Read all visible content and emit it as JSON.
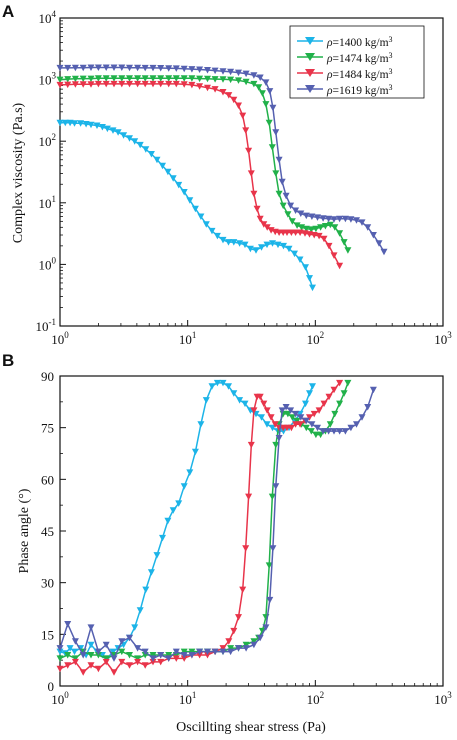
{
  "figure": {
    "panel_a_letter": "A",
    "panel_b_letter": "B"
  },
  "legend": {
    "entries": [
      {
        "label_prefix": "ρ",
        "label_main": "=1400 kg/m",
        "label_sup": "3",
        "color": "#1cb4e8"
      },
      {
        "label_prefix": "ρ",
        "label_main": "=1474 kg/m",
        "label_sup": "3",
        "color": "#21b14a"
      },
      {
        "label_prefix": "ρ",
        "label_main": "=1484 kg/m",
        "label_sup": "3",
        "color": "#e8344a"
      },
      {
        "label_prefix": "ρ",
        "label_main": "=1619 kg/m",
        "label_sup": "3",
        "color": "#5560b0"
      }
    ]
  },
  "chart_data": [
    {
      "type": "scatter",
      "panel": "A",
      "xscale": "log",
      "yscale": "log",
      "xlim": [
        1,
        1000
      ],
      "ylim": [
        0.1,
        10000
      ],
      "xlabel": "",
      "ylabel": "Complex viscosity (Pa.s)",
      "x_tick_labels": [
        {
          "base": "10",
          "exp": "0"
        },
        {
          "base": "10",
          "exp": "1"
        },
        {
          "base": "10",
          "exp": "2"
        },
        {
          "base": "10",
          "exp": "3"
        }
      ],
      "y_tick_labels": [
        {
          "base": "10",
          "exp": "-1"
        },
        {
          "base": "10",
          "exp": "0"
        },
        {
          "base": "10",
          "exp": "1"
        },
        {
          "base": "10",
          "exp": "2"
        },
        {
          "base": "10",
          "exp": "3"
        },
        {
          "base": "10",
          "exp": "4"
        }
      ],
      "legend_position": "top-right",
      "series": [
        {
          "name": "ρ=1400 kg/m3",
          "color": "#1cb4e8",
          "x": [
            1,
            1.1,
            1.2,
            1.3,
            1.45,
            1.6,
            1.75,
            1.95,
            2.15,
            2.35,
            2.6,
            2.85,
            3.15,
            3.5,
            3.85,
            4.25,
            4.7,
            5.2,
            5.75,
            6.35,
            7,
            7.7,
            8.5,
            9.4,
            10.4,
            11.5,
            12.7,
            14,
            15.5,
            17.1,
            18.9,
            20.9,
            23,
            25.5,
            28.1,
            31,
            34.3,
            37.9,
            41.8,
            46.2,
            51,
            56.3,
            62.2,
            68.7,
            75.9,
            83.8,
            90,
            95
          ],
          "y": [
            200,
            200,
            200,
            195,
            195,
            190,
            185,
            180,
            170,
            160,
            150,
            140,
            125,
            112,
            100,
            87,
            74,
            62,
            50,
            40,
            32,
            25,
            19.5,
            15,
            11,
            8,
            6,
            4.5,
            3.5,
            2.9,
            2.5,
            2.3,
            2.3,
            2.2,
            2.1,
            1.8,
            1.7,
            1.9,
            2.1,
            2.2,
            2.1,
            2,
            1.8,
            1.5,
            1.2,
            0.9,
            0.6,
            0.42
          ]
        },
        {
          "name": "ρ=1474 kg/m3",
          "color": "#21b14a",
          "x": [
            1,
            1.15,
            1.32,
            1.52,
            1.75,
            2,
            2.3,
            2.65,
            3.05,
            3.5,
            4.05,
            4.65,
            5.35,
            6.15,
            7.1,
            8.15,
            9.4,
            10.8,
            12.4,
            14.3,
            16.4,
            18.9,
            21.7,
            25,
            28.7,
            33,
            36,
            38.5,
            41,
            43.5,
            46,
            49,
            52,
            56,
            61,
            66,
            72,
            78,
            85,
            93,
            101,
            110,
            120,
            131,
            142,
            155,
            168,
            180
          ],
          "y": [
            1000,
            1020,
            1030,
            1040,
            1040,
            1050,
            1050,
            1050,
            1050,
            1050,
            1050,
            1050,
            1050,
            1050,
            1050,
            1050,
            1050,
            1050,
            1040,
            1030,
            1020,
            1010,
            1000,
            970,
            920,
            850,
            750,
            600,
            400,
            200,
            80,
            30,
            14,
            9,
            6.5,
            5,
            4.3,
            4,
            3.8,
            3.7,
            3.8,
            4,
            4.2,
            4.4,
            4,
            3.2,
            2.3,
            1.7
          ]
        },
        {
          "name": "ρ=1484 kg/m3",
          "color": "#e8344a",
          "x": [
            1,
            1.15,
            1.32,
            1.52,
            1.75,
            2,
            2.3,
            2.65,
            3.05,
            3.5,
            4.05,
            4.65,
            5.35,
            6.15,
            7.1,
            8.15,
            9.4,
            10.8,
            12.4,
            14.3,
            16.4,
            18.9,
            21,
            23,
            25,
            27,
            28.5,
            30,
            31.5,
            33,
            35,
            37,
            39.5,
            42,
            45,
            48.5,
            52,
            56,
            60,
            65,
            70,
            76,
            83,
            90,
            98,
            107,
            117,
            128,
            140,
            155
          ],
          "y": [
            820,
            830,
            840,
            840,
            840,
            850,
            850,
            850,
            850,
            850,
            850,
            850,
            850,
            850,
            850,
            850,
            840,
            820,
            780,
            740,
            700,
            630,
            560,
            470,
            380,
            260,
            150,
            70,
            30,
            14,
            8,
            5.5,
            4.5,
            4,
            3.6,
            3.4,
            3.3,
            3.3,
            3.3,
            3.3,
            3.3,
            3.3,
            3.2,
            3.1,
            3,
            2.9,
            2.6,
            2,
            1.4,
            0.95
          ]
        },
        {
          "name": "ρ=1619 kg/m3",
          "color": "#5560b0",
          "x": [
            1,
            1.15,
            1.32,
            1.52,
            1.75,
            2,
            2.3,
            2.65,
            3.05,
            3.5,
            4.05,
            4.65,
            5.35,
            6.15,
            7.1,
            8.15,
            9.4,
            10.8,
            12.4,
            14.3,
            16.4,
            18.9,
            21.7,
            25,
            28.7,
            33,
            37,
            41,
            44,
            46.5,
            49,
            52,
            55,
            59,
            64,
            70,
            77,
            85,
            94,
            104,
            115,
            127,
            140,
            155,
            172,
            190,
            210,
            232,
            257,
            285,
            315,
            345
          ],
          "y": [
            1550,
            1550,
            1560,
            1560,
            1570,
            1570,
            1570,
            1570,
            1570,
            1560,
            1560,
            1550,
            1550,
            1540,
            1530,
            1520,
            1500,
            1480,
            1460,
            1430,
            1400,
            1370,
            1340,
            1300,
            1250,
            1180,
            1080,
            900,
            650,
            350,
            140,
            50,
            22,
            13,
            9,
            7.5,
            6.7,
            6.2,
            6,
            5.8,
            5.6,
            5.5,
            5.4,
            5.5,
            5.5,
            5.4,
            5.2,
            4.8,
            4,
            3,
            2.2,
            1.6
          ]
        }
      ]
    },
    {
      "type": "scatter",
      "panel": "B",
      "xscale": "log",
      "yscale": "linear",
      "xlim": [
        1,
        1000
      ],
      "ylim": [
        0,
        90
      ],
      "xlabel": "Oscillting shear stress (Pa)",
      "ylabel": "Phase angle (°)",
      "x_tick_labels": [
        {
          "base": "10",
          "exp": "0"
        },
        {
          "base": "10",
          "exp": "1"
        },
        {
          "base": "10",
          "exp": "2"
        },
        {
          "base": "10",
          "exp": "3"
        }
      ],
      "y_ticks": [
        0,
        15,
        30,
        45,
        60,
        75,
        90
      ],
      "series": [
        {
          "name": "ρ=1400 kg/m3",
          "color": "#1cb4e8",
          "x": [
            1,
            1.1,
            1.2,
            1.3,
            1.45,
            1.6,
            1.75,
            1.95,
            2.15,
            2.35,
            2.6,
            2.85,
            3.15,
            3.5,
            3.85,
            4.25,
            4.7,
            5.2,
            5.75,
            6.35,
            7,
            7.7,
            8.5,
            9.4,
            10.4,
            11.5,
            12.7,
            14,
            15.5,
            17.1,
            18.9,
            20.9,
            23,
            25.5,
            28.1,
            31,
            34.3,
            37.9,
            41.8,
            46.2,
            51,
            56.3,
            62.2,
            68.7,
            75.9,
            83.8,
            90,
            95
          ],
          "y": [
            10,
            9.5,
            11,
            10,
            11,
            9,
            12,
            10,
            9,
            8,
            10,
            11,
            12,
            14,
            17,
            22,
            28,
            33,
            38,
            43,
            48,
            51,
            53,
            58,
            62,
            68,
            76,
            83,
            87,
            88,
            88,
            87,
            85,
            83,
            82,
            80,
            79,
            78,
            76,
            75,
            74,
            74,
            75,
            77,
            79,
            82,
            85,
            87
          ]
        },
        {
          "name": "ρ=1474 kg/m3",
          "color": "#21b14a",
          "x": [
            1,
            1.15,
            1.32,
            1.52,
            1.75,
            2,
            2.3,
            2.65,
            3.05,
            3.5,
            4.05,
            4.65,
            5.35,
            6.15,
            7.1,
            8.15,
            9.4,
            10.8,
            12.4,
            14.3,
            16.4,
            18.9,
            21.7,
            25,
            28.7,
            33,
            36,
            38.5,
            41,
            43.5,
            46,
            49,
            52,
            56,
            61,
            66,
            72,
            78,
            85,
            93,
            101,
            110,
            120,
            131,
            142,
            155,
            168,
            180
          ],
          "y": [
            8,
            9,
            8,
            10,
            9,
            9,
            8,
            9,
            10,
            9,
            8,
            9,
            9,
            9,
            9,
            9,
            10,
            10,
            10,
            10,
            10,
            10,
            11,
            11,
            12,
            13,
            14,
            16,
            20,
            35,
            55,
            70,
            76,
            79,
            79,
            78,
            77,
            76,
            75,
            74,
            73,
            73,
            74,
            76,
            79,
            82,
            85,
            88
          ]
        },
        {
          "name": "ρ=1484 kg/m3",
          "color": "#e8344a",
          "x": [
            1,
            1.15,
            1.32,
            1.52,
            1.75,
            2,
            2.3,
            2.65,
            3.05,
            3.5,
            4.05,
            4.65,
            5.35,
            6.15,
            7.1,
            8.15,
            9.4,
            10.8,
            12.4,
            14.3,
            16.4,
            18.9,
            21,
            23,
            25,
            27,
            28.5,
            30,
            31.5,
            33,
            35,
            37,
            39.5,
            42,
            45,
            48.5,
            52,
            56,
            60,
            65,
            70,
            76,
            83,
            90,
            98,
            107,
            117,
            128,
            140,
            155
          ],
          "y": [
            5,
            6,
            7,
            4,
            6,
            5,
            7,
            4,
            7,
            6,
            7,
            6,
            7,
            7,
            8,
            8,
            8,
            9,
            9,
            9,
            10,
            11,
            13,
            16,
            20,
            28,
            40,
            55,
            70,
            80,
            84,
            84,
            82,
            80,
            78,
            76,
            75,
            75,
            75,
            75,
            76,
            76,
            77,
            78,
            79,
            80,
            82,
            84,
            86,
            88
          ]
        },
        {
          "name": "ρ=1619 kg/m3",
          "color": "#5560b0",
          "x": [
            1,
            1.15,
            1.32,
            1.52,
            1.75,
            2,
            2.3,
            2.65,
            3.05,
            3.5,
            4.05,
            4.65,
            5.35,
            6.15,
            7.1,
            8.15,
            9.4,
            10.8,
            12.4,
            14.3,
            16.4,
            18.9,
            21.7,
            25,
            28.7,
            33,
            37,
            41,
            44,
            46.5,
            49,
            52,
            55,
            59,
            64,
            70,
            77,
            85,
            94,
            104,
            115,
            127,
            140,
            155,
            172,
            190,
            210,
            232,
            257,
            285
          ],
          "y": [
            11,
            18,
            13,
            9,
            17,
            10,
            12,
            8,
            13,
            14,
            11,
            10,
            8,
            9,
            8,
            10,
            9,
            9,
            10,
            10,
            10,
            10,
            10,
            11,
            11,
            12,
            14,
            17,
            25,
            40,
            58,
            72,
            80,
            81,
            80,
            79,
            78,
            77,
            76,
            75,
            74,
            74,
            74,
            74,
            74,
            75,
            76,
            78,
            81,
            86
          ]
        }
      ]
    }
  ]
}
